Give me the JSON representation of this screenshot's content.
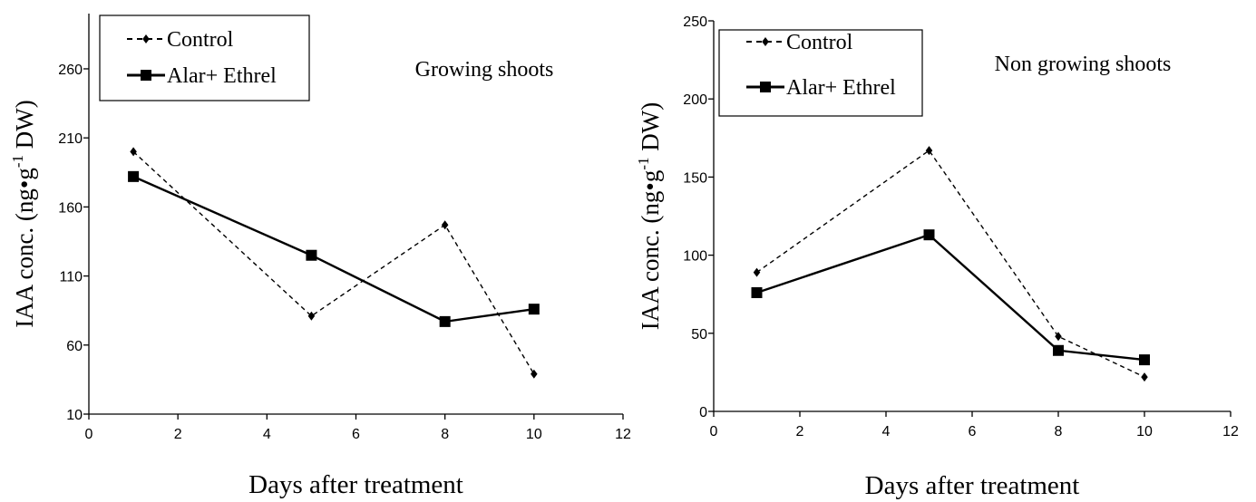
{
  "chart_data": [
    {
      "type": "line",
      "annotation": "Growing shoots",
      "xlabel": "Days after treatment",
      "ylabel_main": "IAA conc. (ng•g",
      "ylabel_sup": "-1",
      "ylabel_tail": " DW)",
      "xlim": [
        0,
        12
      ],
      "ylim": [
        10,
        300
      ],
      "xticks": [
        0,
        2,
        4,
        6,
        8,
        10,
        12
      ],
      "yticks": [
        10,
        60,
        110,
        160,
        210,
        260
      ],
      "legend_position": "top-left",
      "series": [
        {
          "name": "Control",
          "style": "dashed",
          "marker": "diamond",
          "x": [
            1,
            5,
            8,
            10
          ],
          "y": [
            200,
            81,
            147,
            39
          ]
        },
        {
          "name": "Alar+ Ethrel",
          "style": "solid",
          "marker": "square",
          "x": [
            1,
            5,
            8,
            10
          ],
          "y": [
            182,
            125,
            77,
            86
          ]
        }
      ]
    },
    {
      "type": "line",
      "annotation": "Non growing shoots",
      "xlabel": "Days after treatment",
      "ylabel_main": "IAA conc. (ng•g",
      "ylabel_sup": "-1",
      "ylabel_tail": " DW)",
      "xlim": [
        0,
        12
      ],
      "ylim": [
        0,
        250
      ],
      "xticks": [
        0,
        2,
        4,
        6,
        8,
        10,
        12
      ],
      "yticks": [
        0,
        50,
        100,
        150,
        200,
        250
      ],
      "legend_position": "top-left",
      "series": [
        {
          "name": "Control",
          "style": "dashed",
          "marker": "diamond",
          "x": [
            1,
            5,
            8,
            10
          ],
          "y": [
            89,
            167,
            48,
            22
          ]
        },
        {
          "name": "Alar+ Ethrel",
          "style": "solid",
          "marker": "square",
          "x": [
            1,
            5,
            8,
            10
          ],
          "y": [
            76,
            113,
            39,
            33
          ]
        }
      ]
    }
  ]
}
